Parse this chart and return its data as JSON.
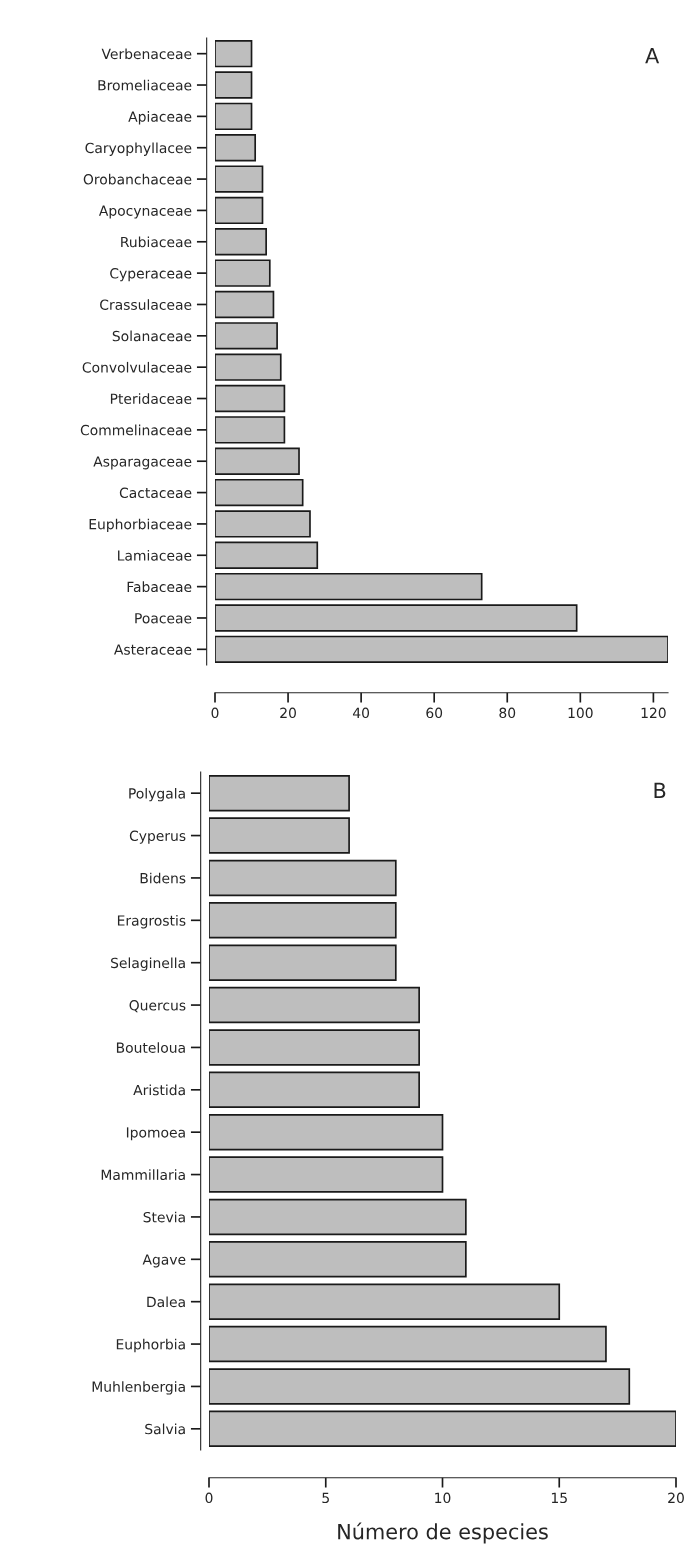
{
  "chart_data": [
    {
      "type": "bar",
      "orientation": "horizontal",
      "annotations": [
        "A"
      ],
      "categories": [
        "Verbenaceae",
        "Bromeliaceae",
        "Apiaceae",
        "Caryophyllacee",
        "Orobanchaceae",
        "Apocynaceae",
        "Rubiaceae",
        "Cyperaceae",
        "Crassulaceae",
        "Solanaceae",
        "Convolvulaceae",
        "Pteridaceae",
        "Commelinaceae",
        "Asparagaceae",
        "Cactaceae",
        "Euphorbiaceae",
        "Lamiaceae",
        "Fabaceae",
        "Poaceae",
        "Asteraceae"
      ],
      "values": [
        10,
        10,
        10,
        11,
        13,
        13,
        14,
        15,
        16,
        17,
        18,
        19,
        19,
        23,
        24,
        26,
        28,
        73,
        99,
        124
      ],
      "color": "#bebebe",
      "xlim": [
        0,
        124
      ],
      "xticks": [
        0,
        20,
        40,
        60,
        80,
        100,
        120
      ],
      "grid": false
    },
    {
      "type": "bar",
      "orientation": "horizontal",
      "annotations": [
        "B"
      ],
      "xlabel": "Número de especies",
      "categories": [
        "Polygala",
        "Cyperus",
        "Bidens",
        "Eragrostis",
        "Selaginella",
        "Quercus",
        "Bouteloua",
        "Aristida",
        "Ipomoea",
        "Mammillaria",
        "Stevia",
        "Agave",
        "Dalea",
        "Euphorbia",
        "Muhlenbergia",
        "Salvia"
      ],
      "values": [
        6,
        6,
        8,
        8,
        8,
        9,
        9,
        9,
        10,
        10,
        11,
        11,
        15,
        17,
        18,
        20
      ],
      "color": "#bebebe",
      "xlim": [
        0,
        20
      ],
      "xticks": [
        0,
        5,
        10,
        15,
        20
      ],
      "grid": false
    }
  ]
}
